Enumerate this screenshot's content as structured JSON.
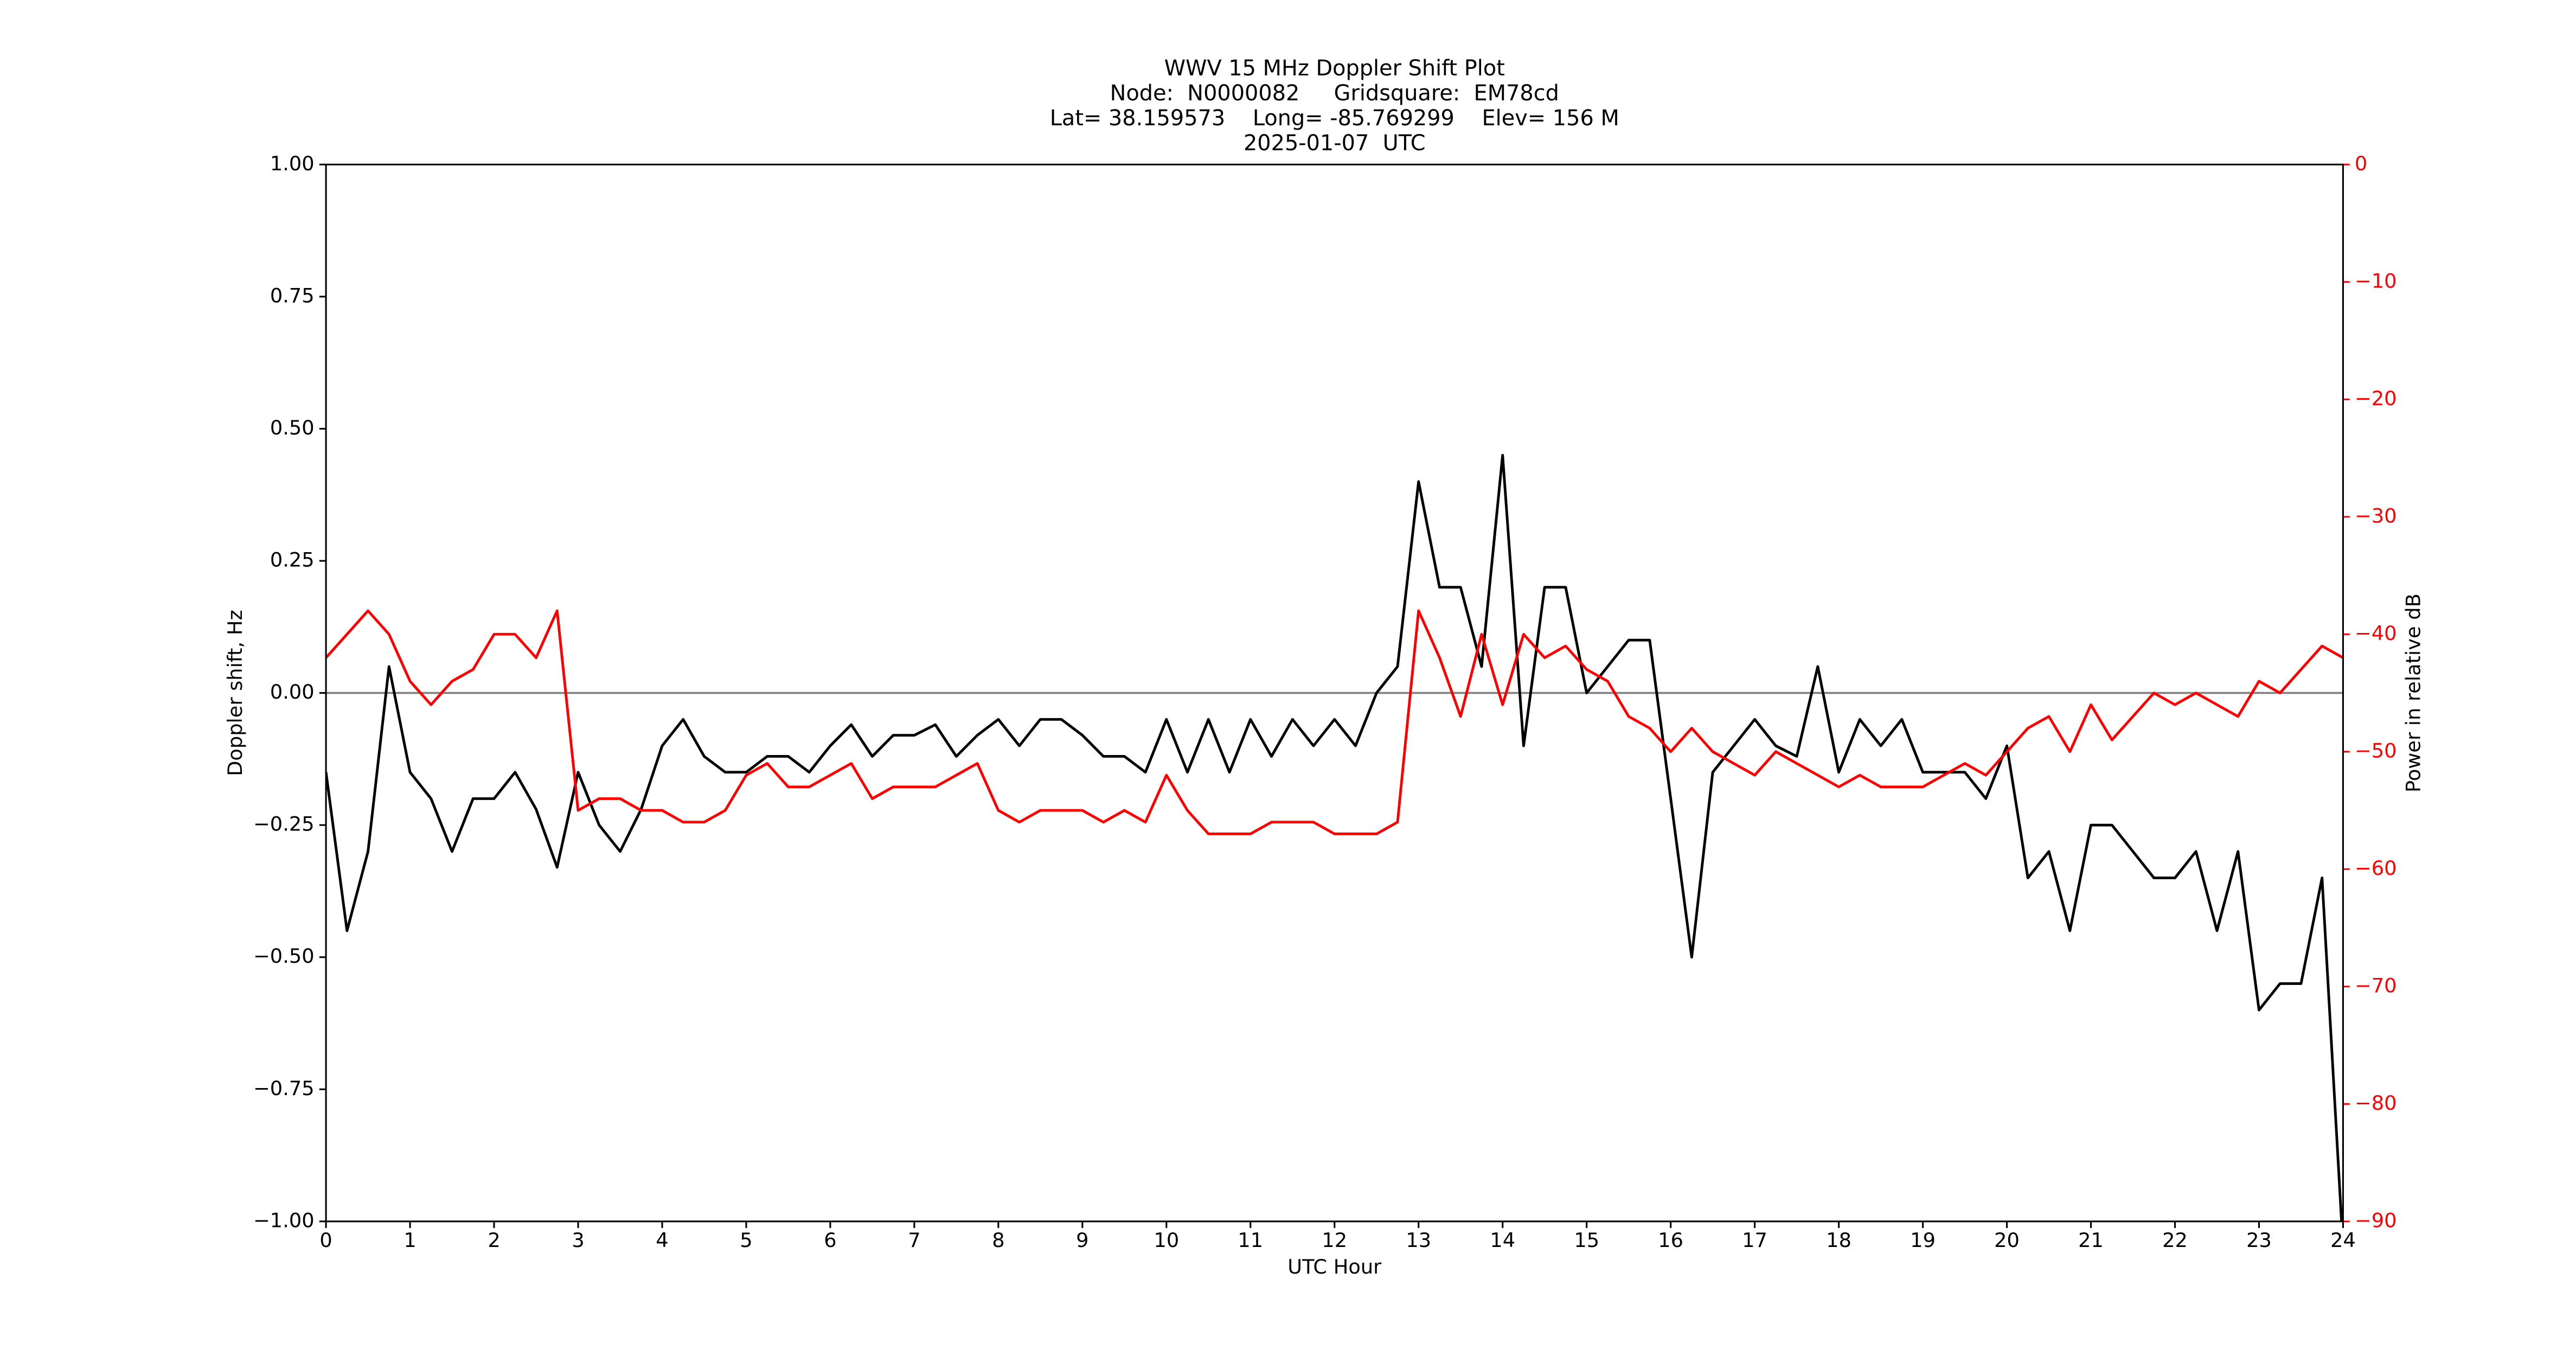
{
  "chart_data": {
    "type": "line",
    "title": [
      "WWV 15 MHz Doppler Shift Plot",
      "Node:  N0000082     Gridsquare:  EM78cd",
      "Lat= 38.159573    Long= -85.769299    Elev= 156 M",
      "2025-01-07  UTC"
    ],
    "xlabel": "UTC Hour",
    "ylabel": "Doppler shift, Hz",
    "y2label": "Power in relative dB",
    "xlim": [
      0,
      24
    ],
    "xticks": [
      0,
      1,
      2,
      3,
      4,
      5,
      6,
      7,
      8,
      9,
      10,
      11,
      12,
      13,
      14,
      15,
      16,
      17,
      18,
      19,
      20,
      21,
      22,
      23,
      24
    ],
    "ylim": [
      -1,
      1
    ],
    "yticks": [
      {
        "value": -1,
        "label": "−1.00"
      },
      {
        "value": -0.75,
        "label": "−0.75"
      },
      {
        "value": -0.5,
        "label": "−0.50"
      },
      {
        "value": -0.25,
        "label": "−0.25"
      },
      {
        "value": 0,
        "label": "0.00"
      },
      {
        "value": 0.25,
        "label": "0.25"
      },
      {
        "value": 0.5,
        "label": "0.50"
      },
      {
        "value": 0.75,
        "label": "0.75"
      },
      {
        "value": 1,
        "label": "1.00"
      }
    ],
    "y2lim": [
      -90,
      0
    ],
    "y2ticks": [
      {
        "value": -90,
        "label": "−90"
      },
      {
        "value": -80,
        "label": "−80"
      },
      {
        "value": -70,
        "label": "−70"
      },
      {
        "value": -60,
        "label": "−60"
      },
      {
        "value": -50,
        "label": "−50"
      },
      {
        "value": -40,
        "label": "−40"
      },
      {
        "value": -30,
        "label": "−30"
      },
      {
        "value": -20,
        "label": "−20"
      },
      {
        "value": -10,
        "label": "−10"
      },
      0
    ],
    "y2color": "#ff0000",
    "hline": 0,
    "hline_color": "#808080",
    "x": [
      0,
      0.25,
      0.5,
      0.75,
      1,
      1.25,
      1.5,
      1.75,
      2,
      2.25,
      2.5,
      2.75,
      3,
      3.25,
      3.5,
      3.75,
      4,
      4.25,
      4.5,
      4.75,
      5,
      5.25,
      5.5,
      5.75,
      6,
      6.25,
      6.5,
      6.75,
      7,
      7.25,
      7.5,
      7.75,
      8,
      8.25,
      8.5,
      8.75,
      9,
      9.25,
      9.5,
      9.75,
      10,
      10.25,
      10.5,
      10.75,
      11,
      11.25,
      11.5,
      11.75,
      12,
      12.25,
      12.5,
      12.75,
      13,
      13.25,
      13.5,
      13.75,
      14,
      14.25,
      14.5,
      14.75,
      15,
      15.25,
      15.5,
      15.75,
      16,
      16.25,
      16.5,
      16.75,
      17,
      17.25,
      17.5,
      17.75,
      18,
      18.25,
      18.5,
      18.75,
      19,
      19.25,
      19.5,
      19.75,
      20,
      20.25,
      20.5,
      20.75,
      21,
      21.25,
      21.5,
      21.75,
      22,
      22.25,
      22.5,
      22.75,
      23,
      23.25,
      23.5,
      23.75,
      24
    ],
    "series": [
      {
        "color": "#000000",
        "axis": "y",
        "values": [
          -0.15,
          -0.45,
          -0.3,
          0.05,
          -0.15,
          -0.2,
          -0.3,
          -0.2,
          -0.2,
          -0.15,
          -0.22,
          -0.33,
          -0.15,
          -0.25,
          -0.3,
          -0.22,
          -0.1,
          -0.05,
          -0.12,
          -0.15,
          -0.15,
          -0.12,
          -0.12,
          -0.15,
          -0.1,
          -0.06,
          -0.12,
          -0.08,
          -0.08,
          -0.06,
          -0.12,
          -0.08,
          -0.05,
          -0.1,
          -0.05,
          -0.05,
          -0.08,
          -0.12,
          -0.12,
          -0.15,
          -0.05,
          -0.15,
          -0.05,
          -0.15,
          -0.05,
          -0.12,
          -0.05,
          -0.1,
          -0.05,
          -0.1,
          0,
          0.05,
          0.4,
          0.2,
          0.2,
          0.05,
          0.45,
          -0.1,
          0.2,
          0.2,
          0,
          0.05,
          0.1,
          0.1,
          -0.2,
          -0.5,
          -0.15,
          -0.1,
          -0.05,
          -0.1,
          -0.12,
          0.05,
          -0.15,
          -0.05,
          -0.1,
          -0.05,
          -0.15,
          -0.15,
          -0.15,
          -0.2,
          -0.1,
          -0.35,
          -0.3,
          -0.45,
          -0.25,
          -0.25,
          -0.3,
          -0.35,
          -0.35,
          -0.3,
          -0.45,
          -0.3,
          -0.6,
          -0.55,
          -0.55,
          -0.35,
          -1.05
        ]
      },
      {
        "color": "#ff0000",
        "axis": "y2",
        "values": [
          -42,
          -40,
          -38,
          -40,
          -44,
          -46,
          -44,
          -43,
          -40,
          -40,
          -42,
          -38,
          -55,
          -54,
          -54,
          -55,
          -55,
          -56,
          -56,
          -55,
          -52,
          -51,
          -53,
          -53,
          -52,
          -51,
          -54,
          -53,
          -53,
          -53,
          -52,
          -51,
          -55,
          -56,
          -55,
          -55,
          -55,
          -56,
          -55,
          -56,
          -52,
          -55,
          -57,
          -57,
          -57,
          -56,
          -56,
          -56,
          -57,
          -57,
          -57,
          -56,
          -38,
          -42,
          -47,
          -40,
          -46,
          -40,
          -42,
          -41,
          -43,
          -44,
          -47,
          -48,
          -50,
          -48,
          -50,
          -51,
          -52,
          -50,
          -51,
          -52,
          -53,
          -52,
          -53,
          -53,
          -53,
          -52,
          -51,
          -52,
          -50,
          -48,
          -47,
          -50,
          -46,
          -49,
          -47,
          -45,
          -46,
          -45,
          -46,
          -47,
          -44,
          -45,
          -43,
          -41,
          -42
        ]
      }
    ]
  }
}
